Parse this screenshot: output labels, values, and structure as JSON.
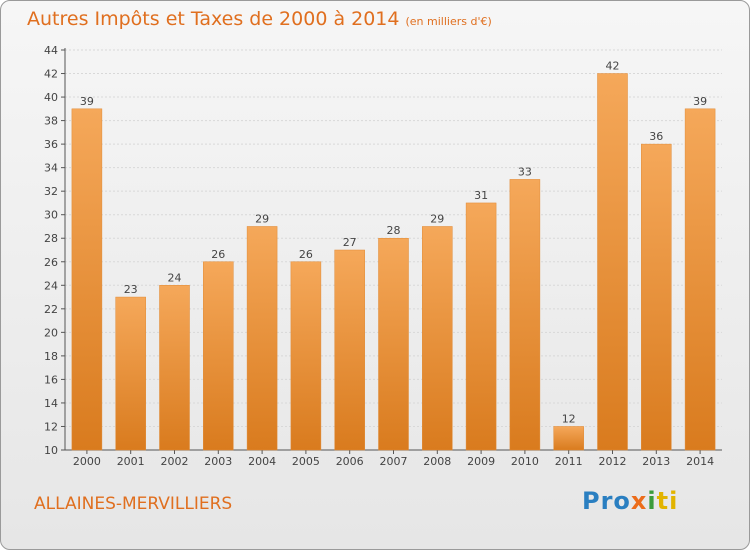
{
  "chart_data": {
    "type": "bar",
    "title": "Autres Impôts et Taxes de 2000 à 2014",
    "subtitle": "(en milliers d'€)",
    "categories": [
      "2000",
      "2001",
      "2002",
      "2003",
      "2004",
      "2005",
      "2006",
      "2007",
      "2008",
      "2009",
      "2010",
      "2011",
      "2012",
      "2013",
      "2014"
    ],
    "values": [
      39,
      23,
      24,
      26,
      29,
      26,
      27,
      28,
      29,
      31,
      33,
      12,
      42,
      36,
      39
    ],
    "ylim": [
      10,
      44
    ],
    "yticks": [
      10,
      12,
      14,
      16,
      18,
      20,
      22,
      24,
      26,
      28,
      30,
      32,
      34,
      36,
      38,
      40,
      42,
      44
    ],
    "grid": true,
    "bar_color": "#f0902f"
  },
  "footer": {
    "commune": "ALLAINES-MERVILLIERS",
    "logo": [
      "Pro",
      "x",
      "i",
      "ti"
    ]
  }
}
